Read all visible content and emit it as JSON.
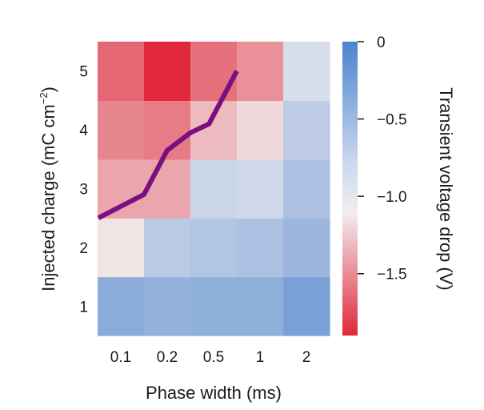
{
  "chart_data": {
    "type": "heatmap",
    "xlabel": "Phase width (ms)",
    "ylabel_main": "Injected charge (mC cm",
    "ylabel_sup": "−2",
    "ylabel_close": ")",
    "x_categories": [
      "0.1",
      "0.2",
      "0.5",
      "1",
      "2"
    ],
    "y_categories": [
      "1",
      "2",
      "3",
      "4",
      "5"
    ],
    "values": [
      [
        -0.35,
        -0.4,
        -0.38,
        -0.38,
        -0.25
      ],
      [
        -1.0,
        -0.62,
        -0.58,
        -0.55,
        -0.45
      ],
      [
        -1.3,
        -1.3,
        -0.72,
        -0.75,
        -0.55
      ],
      [
        -1.45,
        -1.5,
        -1.2,
        -1.05,
        -0.65
      ],
      [
        -1.6,
        -1.9,
        -1.55,
        -1.4,
        -0.8
      ]
    ],
    "colorbar": {
      "label": "Transient voltage drop (V)",
      "range": [
        -1.9,
        0
      ],
      "ticks": [
        0,
        -0.5,
        -1.0,
        -1.5
      ],
      "tick_labels": [
        "0",
        "−0.5",
        "−1.0",
        "−1.5"
      ],
      "colors": {
        "high": "#4f86cf",
        "mid": "#f1eeef",
        "low": "#e0283a"
      }
    },
    "threshold_line": {
      "color": "#7a0f7f",
      "points": [
        {
          "x": 0.1,
          "y": 2.5
        },
        {
          "x": 0.2,
          "y": 2.9
        },
        {
          "x": 0.35,
          "y": 3.65
        },
        {
          "x": 0.5,
          "y": 3.95
        },
        {
          "x": 0.7,
          "y": 4.1
        },
        {
          "x": 1.0,
          "y": 5.0
        }
      ]
    }
  }
}
